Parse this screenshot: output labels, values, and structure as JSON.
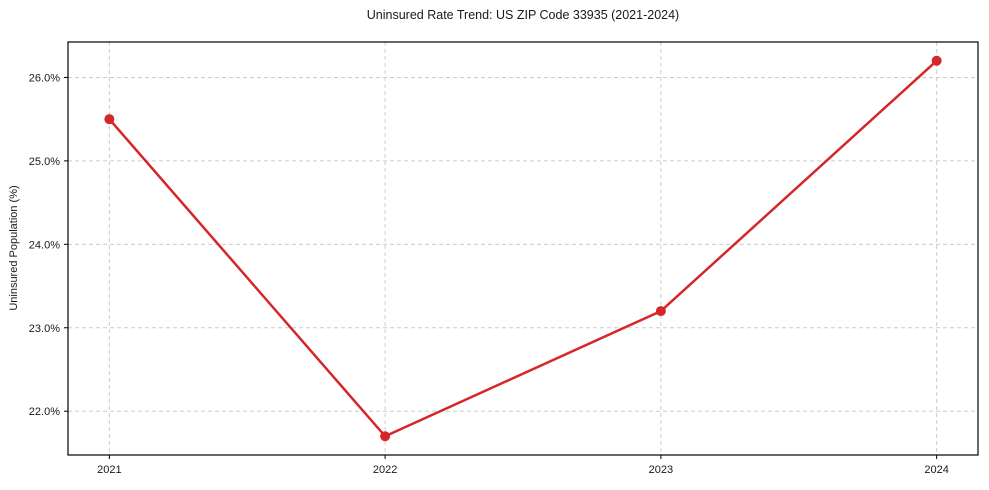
{
  "chart_data": {
    "type": "line",
    "title": "Uninsured Rate Trend: US ZIP Code 33935 (2021-2024)",
    "xlabel": "",
    "ylabel": "Uninsured Population (%)",
    "x": [
      2021,
      2022,
      2023,
      2024
    ],
    "xtick_labels": [
      "2021",
      "2022",
      "2023",
      "2024"
    ],
    "series": [
      {
        "name": "uninsured-rate",
        "values": [
          25.5,
          21.7,
          23.2,
          26.2
        ],
        "color": "#d62728"
      }
    ],
    "yticks": [
      22.0,
      23.0,
      24.0,
      25.0,
      26.0
    ],
    "ytick_labels": [
      "22.0%",
      "23.0%",
      "24.0%",
      "25.0%",
      "26.0%"
    ],
    "xlim": [
      2020.85,
      2024.15
    ],
    "ylim": [
      21.475,
      26.425
    ],
    "grid": true,
    "grid_style": "dashed",
    "legend_position": "none",
    "line_width": 2.5,
    "marker": "circle",
    "marker_radius": 5,
    "grid_color": "#cccccc",
    "axis_color": "#000000",
    "tick_label_color": "#1a1a1a",
    "background": "#ffffff"
  }
}
